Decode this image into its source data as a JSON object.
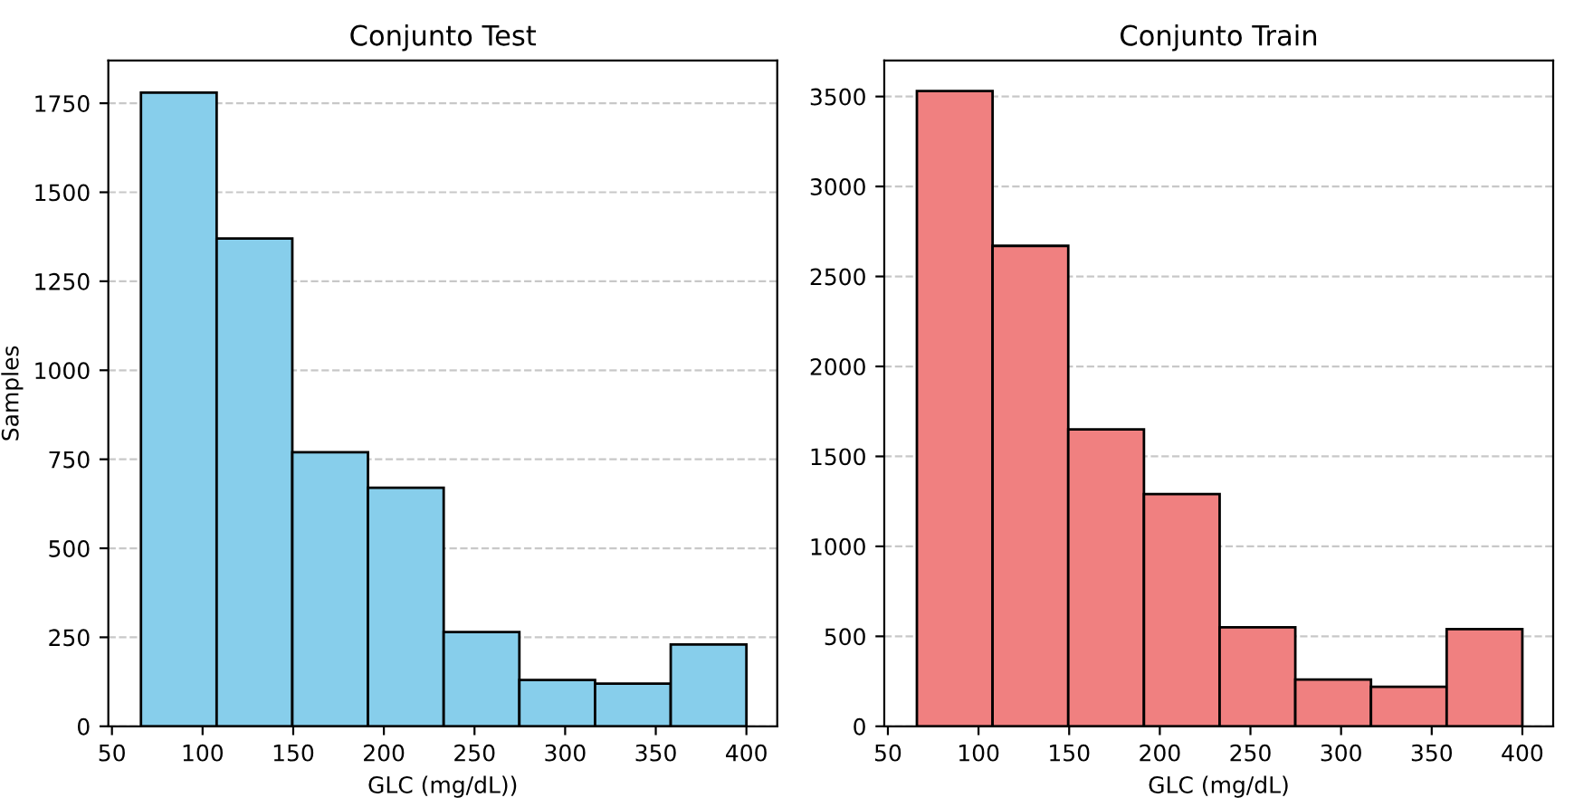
{
  "chart_data": [
    {
      "type": "histogram",
      "title": "Conjunto Test",
      "xlabel": "GLC (mg/dL))",
      "ylabel": "Samples",
      "bins": [
        66,
        107.75,
        149.5,
        191.25,
        233,
        274.75,
        316.5,
        358.25,
        400
      ],
      "values": [
        1780,
        1370,
        770,
        670,
        265,
        130,
        120,
        230
      ],
      "color": "#87ceeb",
      "xlim": [
        48,
        417
      ],
      "xticks": [
        50,
        100,
        150,
        200,
        250,
        300,
        350,
        400
      ],
      "ylim": [
        0,
        1870
      ],
      "yticks": [
        0,
        250,
        500,
        750,
        1000,
        1250,
        1500,
        1750
      ],
      "grid": "y"
    },
    {
      "type": "histogram",
      "title": "Conjunto Train",
      "xlabel": "GLC (mg/dL)",
      "bins": [
        66,
        107.75,
        149.5,
        191.25,
        233,
        274.75,
        316.5,
        358.25,
        400
      ],
      "values": [
        3530,
        2670,
        1650,
        1290,
        550,
        260,
        220,
        540
      ],
      "color": "#f08080",
      "xlim": [
        48,
        417
      ],
      "xticks": [
        50,
        100,
        150,
        200,
        250,
        300,
        350,
        400
      ],
      "ylim": [
        0,
        3700
      ],
      "yticks": [
        0,
        500,
        1000,
        1500,
        2000,
        2500,
        3000,
        3500
      ],
      "grid": "y"
    }
  ]
}
